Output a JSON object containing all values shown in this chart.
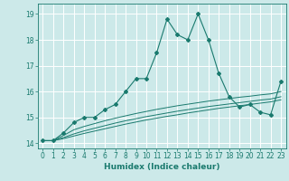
{
  "xlabel": "Humidex (Indice chaleur)",
  "x": [
    0,
    1,
    2,
    3,
    4,
    5,
    6,
    7,
    8,
    9,
    10,
    11,
    12,
    13,
    14,
    15,
    16,
    17,
    18,
    19,
    20,
    21,
    22,
    23
  ],
  "line1": [
    14.1,
    14.1,
    14.4,
    14.8,
    15.0,
    15.0,
    15.3,
    15.5,
    16.0,
    16.5,
    16.5,
    17.5,
    18.8,
    18.2,
    18.0,
    19.0,
    18.0,
    16.7,
    15.8,
    15.4,
    15.5,
    15.2,
    15.1,
    16.4
  ],
  "line2": [
    14.1,
    14.1,
    14.3,
    14.52,
    14.65,
    14.76,
    14.87,
    14.97,
    15.06,
    15.15,
    15.23,
    15.31,
    15.38,
    15.45,
    15.51,
    15.57,
    15.63,
    15.68,
    15.73,
    15.78,
    15.82,
    15.87,
    15.91,
    16.0
  ],
  "line3": [
    14.1,
    14.1,
    14.22,
    14.36,
    14.48,
    14.58,
    14.68,
    14.78,
    14.87,
    14.95,
    15.03,
    15.1,
    15.17,
    15.24,
    15.3,
    15.36,
    15.42,
    15.47,
    15.52,
    15.57,
    15.62,
    15.67,
    15.71,
    15.8
  ],
  "line4": [
    14.1,
    14.1,
    14.18,
    14.28,
    14.38,
    14.47,
    14.56,
    14.65,
    14.74,
    14.82,
    14.9,
    14.97,
    15.04,
    15.1,
    15.17,
    15.23,
    15.29,
    15.35,
    15.4,
    15.45,
    15.5,
    15.55,
    15.6,
    15.68
  ],
  "bg_color": "#cce9e9",
  "grid_color": "#ffffff",
  "line_color": "#1a7a6e",
  "xlim": [
    -0.5,
    23.5
  ],
  "ylim": [
    13.8,
    19.4
  ],
  "xticks": [
    0,
    1,
    2,
    3,
    4,
    5,
    6,
    7,
    8,
    9,
    10,
    11,
    12,
    13,
    14,
    15,
    16,
    17,
    18,
    19,
    20,
    21,
    22,
    23
  ],
  "yticks": [
    14,
    15,
    16,
    17,
    18,
    19
  ],
  "tick_fontsize": 5.5,
  "xlabel_fontsize": 6.5
}
